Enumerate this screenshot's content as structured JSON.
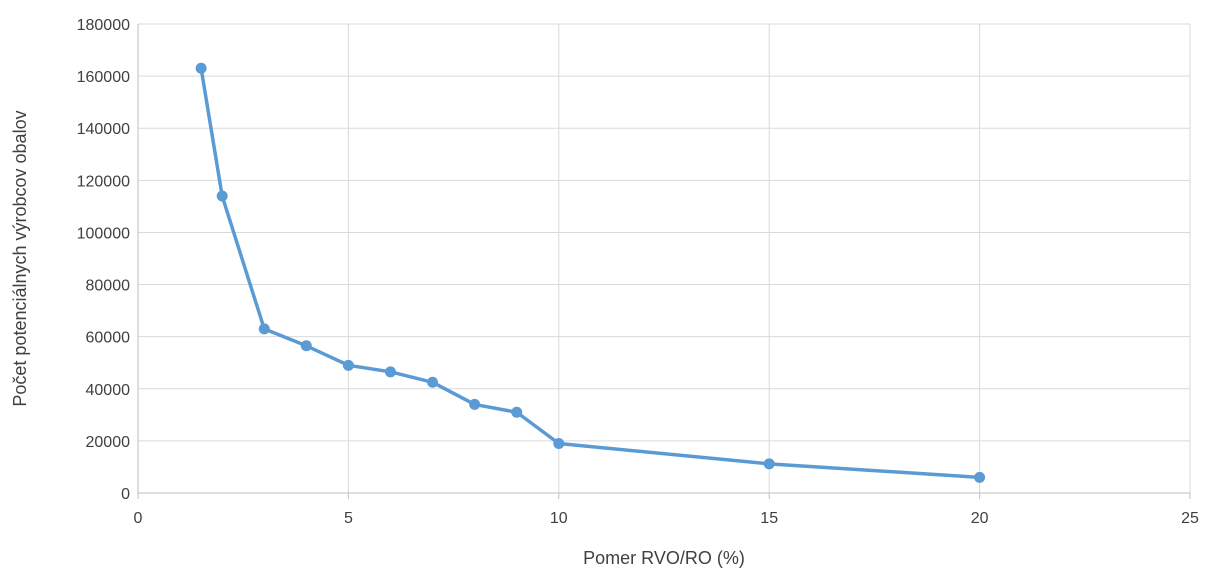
{
  "chart_data": {
    "type": "line",
    "title": "",
    "xlabel": "Pomer RVO/RO (%)",
    "ylabel": "Počet potenciálnych výrobcov obalov",
    "xlim": [
      0,
      25
    ],
    "ylim": [
      0,
      180000
    ],
    "x_ticks": [
      0,
      5,
      10,
      15,
      20,
      25
    ],
    "y_ticks": [
      0,
      20000,
      40000,
      60000,
      80000,
      100000,
      120000,
      140000,
      160000,
      180000
    ],
    "grid": true,
    "legend": "none",
    "series": [
      {
        "color": "#5b9bd5",
        "x": [
          1.5,
          2,
          3,
          4,
          5,
          6,
          7,
          8,
          9,
          10,
          15,
          20
        ],
        "y": [
          163000,
          114000,
          63000,
          56500,
          49000,
          46500,
          42500,
          34000,
          31000,
          19000,
          11200,
          6000
        ]
      }
    ]
  }
}
